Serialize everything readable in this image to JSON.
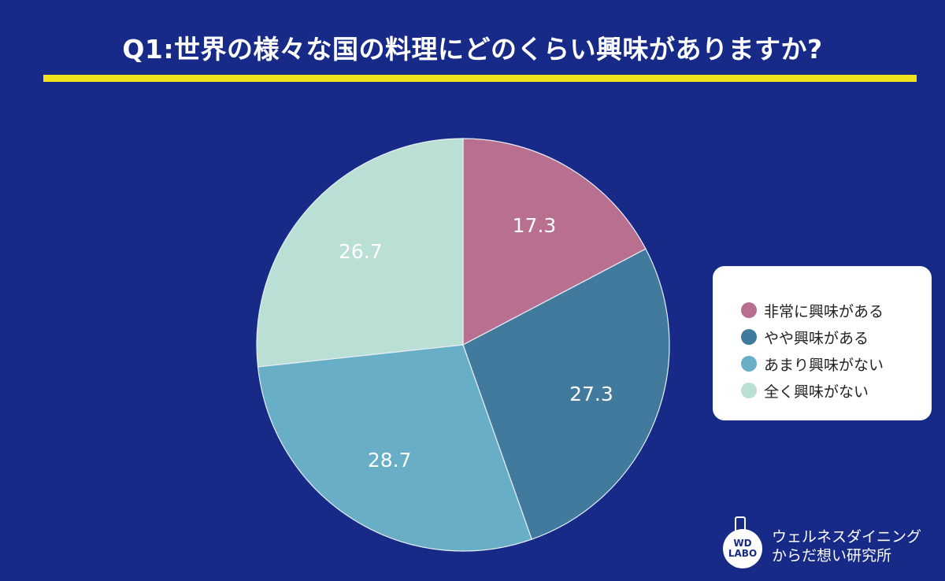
{
  "header": {
    "title": "Q1:世界の様々な国の料理にどのくらい興味がありますか?"
  },
  "chart_data": {
    "type": "pie",
    "title": "Q1:世界の様々な国の料理にどのくらい興味がありますか?",
    "categories": [
      "非常に興味がある",
      "やや興味がある",
      "あまり興味がない",
      "全く興味がない"
    ],
    "values": [
      17.3,
      27.3,
      28.7,
      26.7
    ],
    "data_labels": [
      "17.3",
      "27.3",
      "28.7",
      "26.7"
    ],
    "colors": [
      "#b86f90",
      "#417a9c",
      "#67aec6",
      "#badfd4"
    ],
    "legend_position": "right"
  },
  "legend": {
    "items": [
      {
        "label": "非常に興味がある",
        "color": "#b86f90"
      },
      {
        "label": "やや興味がある",
        "color": "#417a9c"
      },
      {
        "label": "あまり興味がない",
        "color": "#67aec6"
      },
      {
        "label": "全く興味がない",
        "color": "#badfd4"
      }
    ]
  },
  "logo": {
    "mark_line1": "WD",
    "mark_line2": "LABO",
    "text_line1": "ウェルネスダイニング",
    "text_line2": "からだ想い研究所"
  }
}
